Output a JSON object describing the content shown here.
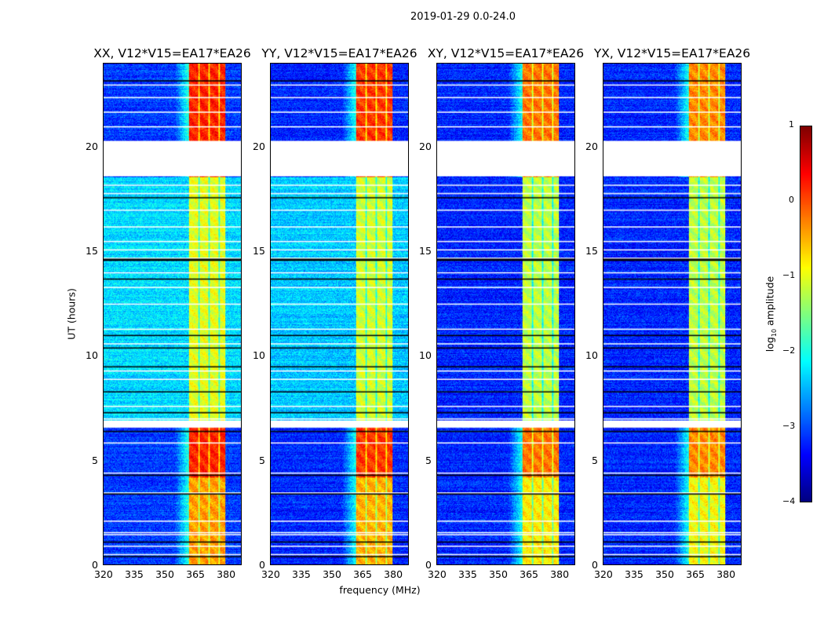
{
  "suptitle": "2019-01-29 0.0-24.0",
  "chart_data": {
    "type": "heatmap",
    "panels": [
      {
        "title": "XX, V12*V15=EA17*EA26",
        "background_mid": -2.3,
        "background_outer": -3.1,
        "band_mid": -1.0,
        "band_outer": 0.2
      },
      {
        "title": "YY, V12*V15=EA17*EA26",
        "background_mid": -2.4,
        "background_outer": -3.2,
        "band_mid": -1.1,
        "band_outer": 0.1
      },
      {
        "title": "XY, V12*V15=EA17*EA26",
        "background_mid": -3.2,
        "background_outer": -3.2,
        "band_mid": -1.2,
        "band_outer": -0.2
      },
      {
        "title": "YX, V12*V15=EA17*EA26",
        "background_mid": -3.2,
        "background_outer": -3.2,
        "band_mid": -1.2,
        "band_outer": -0.3
      }
    ],
    "xlabel": "frequency (MHz)",
    "ylabel": "UT (hours)",
    "xlim": [
      320,
      388
    ],
    "ylim": [
      0,
      24
    ],
    "xticks": [
      "320",
      "335",
      "350",
      "365",
      "380"
    ],
    "xtick_values": [
      320,
      335,
      350,
      365,
      380
    ],
    "yticks": [
      "0",
      "5",
      "10",
      "15",
      "20"
    ],
    "ytick_values": [
      0,
      5,
      10,
      15,
      20
    ],
    "signal_band_mhz": [
      362,
      380
    ],
    "band_dividers_mhz": [
      367,
      372,
      377
    ],
    "data_gaps_hours": [
      [
        18.6,
        20.3
      ],
      [
        6.55,
        6.9
      ]
    ],
    "flagged_hours": [
      0.5,
      0.9,
      1.45,
      1.55,
      2.1,
      3.45,
      4.4,
      5.85,
      7.0,
      7.6,
      8.9,
      9.3,
      10.6,
      11.3,
      12.5,
      13.3,
      14.0,
      14.7,
      15.1,
      15.5,
      16.2,
      17.0,
      17.8,
      18.2,
      21.0,
      21.7,
      22.4,
      23.0
    ],
    "dark_rows_hours": [
      0.4,
      1.1,
      3.4,
      4.3,
      6.4,
      7.3,
      8.3,
      9.5,
      10.4,
      11.0,
      13.7,
      14.6,
      14.65,
      17.6,
      23.2
    ],
    "colorbar": {
      "label_prefix": "log",
      "label_sub": "10",
      "label_suffix": " amplitude",
      "range": [
        -4,
        1
      ],
      "ticks": [
        "−4",
        "−3",
        "−2",
        "−1",
        "0",
        "1"
      ],
      "tick_values": [
        -4,
        -3,
        -2,
        -1,
        0,
        1
      ],
      "colormap": "jet"
    }
  }
}
